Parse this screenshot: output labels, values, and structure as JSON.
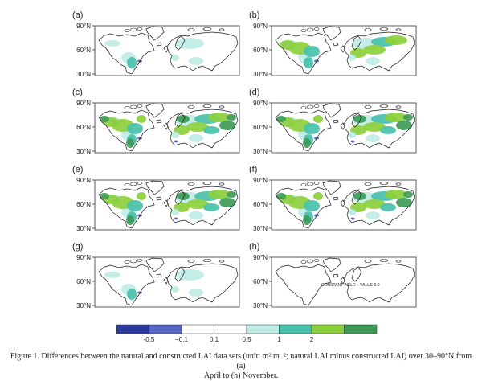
{
  "panels": [
    {
      "label": "(a)",
      "intensity": 0.35
    },
    {
      "label": "(b)",
      "intensity": 0.6
    },
    {
      "label": "(c)",
      "intensity": 1.0
    },
    {
      "label": "(d)",
      "intensity": 1.0
    },
    {
      "label": "(e)",
      "intensity": 0.95
    },
    {
      "label": "(f)",
      "intensity": 0.9
    },
    {
      "label": "(g)",
      "intensity": 0.4
    },
    {
      "label": "(h)",
      "intensity": 0.0
    }
  ],
  "lat_ticks": [
    "90°N",
    "60°N",
    "30°N"
  ],
  "panel_h_annotation": "CONSTANT FIELD – VALUE 0.0",
  "colorbar": {
    "colors": [
      "#2c3a9c",
      "#5867c6",
      "#ffffff",
      "#ffffff",
      "#bfece6",
      "#48c1ad",
      "#8ccf3c",
      "#3d9b57"
    ],
    "tick_labels": [
      "-0.5",
      "−0.1",
      "0.1",
      "0.5",
      "1",
      "2"
    ]
  },
  "colors": {
    "light": "#bfece6",
    "teal": "#48c1ad",
    "green": "#8ccf3c",
    "dark": "#3d9b57",
    "blue": "#5867c6",
    "coast": "#1a1a1a"
  },
  "caption": {
    "line1": "Figure 1. Differences between the natural and constructed LAI data sets (unit: m² m⁻²; natural LAI minus constructed LAI) over 30–90°N from (a)",
    "line2": "April to (h) November."
  }
}
